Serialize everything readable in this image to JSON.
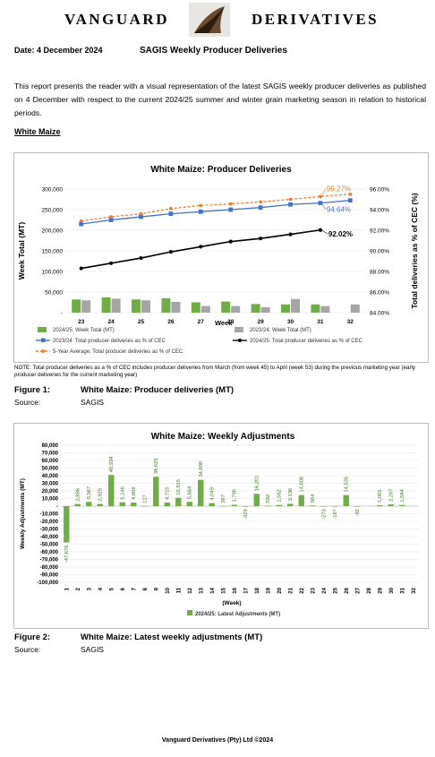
{
  "header": {
    "brand_left": "VANGUARD",
    "brand_right": "DERIVATIVES"
  },
  "report": {
    "date_label": "Date:  4 December 2024",
    "title": "SAGIS Weekly Producer Deliveries",
    "intro": "This report presents the reader with a visual representation of the latest SAGIS weekly producer deliveries as published on 4 December with respect to the current 2024/25 summer and winter grain marketing season in relation to historical periods.",
    "section": "White Maize",
    "note": "NOTE: Total producer deliveries as a % of CEC includes producer deliveries from March (from week 45) to April (week 53) during the previous marketing year (early producer deliveries for the current marketing year)"
  },
  "figure1": {
    "label": "Figure 1:",
    "caption": "White Maize: Producer deliveries (MT)",
    "source_label": "Source:",
    "source": "SAGIS"
  },
  "figure2": {
    "label": "Figure 2:",
    "caption": "White Maize: Latest weekly adjustments (MT)",
    "source_label": "Source:",
    "source": "SAGIS"
  },
  "footer": "Vanguard Derivatives (Pty) Ltd ©2024",
  "chart_data": [
    {
      "type": "bar",
      "title": "White Maize: Producer Deliveries",
      "xlabel": "Week",
      "ylabel": "Week Total (MT)",
      "y2label": "Total deliveries as % of CEC (%)",
      "categories": [
        "23",
        "24",
        "25",
        "26",
        "27",
        "28",
        "29",
        "30",
        "31",
        "32"
      ],
      "ylim": [
        0,
        300000
      ],
      "yticks": [
        0,
        50000,
        100000,
        150000,
        200000,
        250000,
        300000
      ],
      "ytick_labels": [
        "-",
        "50,000",
        "100,000",
        "150,000",
        "200,000",
        "250,000",
        "300,000"
      ],
      "y2lim": [
        84,
        96
      ],
      "y2ticks": [
        84,
        86,
        88,
        90,
        92,
        94,
        96
      ],
      "y2tick_labels": [
        "84.00%",
        "86.00%",
        "88.00%",
        "90.00%",
        "92.00%",
        "94.00%",
        "96.00%"
      ],
      "series": [
        {
          "name": "2024/25: Week Total (MT)",
          "kind": "bar",
          "axis": "left",
          "color": "#70ad47",
          "values": [
            32000,
            37000,
            32000,
            35000,
            25000,
            27000,
            21000,
            20000,
            20000,
            null
          ]
        },
        {
          "name": "2023/24: Week Total (MT)",
          "kind": "bar",
          "axis": "left",
          "color": "#a5a5a5",
          "values": [
            30000,
            34000,
            30000,
            26000,
            16000,
            16000,
            13000,
            33000,
            16000,
            20000
          ]
        },
        {
          "name": "2023/24: Total producer deliveries as % of CEC",
          "kind": "line",
          "axis": "right",
          "color": "#4472c4",
          "values": [
            92.6,
            93.0,
            93.3,
            93.6,
            93.8,
            94.0,
            94.2,
            94.5,
            94.64,
            94.9
          ]
        },
        {
          "name": "2024/25: Total producer deliveries as % of CEC",
          "kind": "line",
          "axis": "right",
          "color": "#000000",
          "values": [
            88.3,
            88.8,
            89.3,
            89.9,
            90.4,
            90.9,
            91.2,
            91.6,
            92.02,
            null
          ]
        },
        {
          "name": "5-Year Average: Total producer deliveries as % of CEC",
          "kind": "line",
          "axis": "right",
          "color": "#ed7d31",
          "dashed": true,
          "values": [
            92.9,
            93.3,
            93.6,
            94.1,
            94.4,
            94.55,
            94.75,
            95.0,
            95.27,
            95.5
          ]
        }
      ],
      "annotations": [
        {
          "text": "95.27%",
          "series": 4,
          "index": 8,
          "color": "#ed7d31"
        },
        {
          "text": "94.64%",
          "series": 2,
          "index": 8,
          "color": "#4472c4"
        },
        {
          "text": "92.02%",
          "series": 3,
          "index": 8,
          "color": "#000000"
        }
      ],
      "grid": true,
      "legend": "bottom"
    },
    {
      "type": "bar",
      "title": "White Maize: Weekly Adjustments",
      "xlabel": "(Week)",
      "ylabel": "Weekly Adjustments (MT)",
      "categories": [
        "1",
        "2",
        "3",
        "4",
        "5",
        "6",
        "7",
        "8",
        "9",
        "10",
        "11",
        "12",
        "13",
        "14",
        "15",
        "16",
        "17",
        "18",
        "19",
        "20",
        "21",
        "22",
        "23",
        "24",
        "25",
        "26",
        "27",
        "28",
        "29",
        "30",
        "31",
        "32"
      ],
      "ylim": [
        -100000,
        80000
      ],
      "ytick_labels": [
        "80,000",
        "70,000",
        "60,000",
        "50,000",
        "40,000",
        "30,000",
        "20,000",
        "10,000",
        "-",
        "-10,000",
        "-20,000",
        "-30,000",
        "-40,000",
        "-50,000",
        "-60,000",
        "-70,000",
        "-80,000",
        "-90,000",
        "-100,000"
      ],
      "series": [
        {
          "name": "2024/25: Latest Adjustments (MT)",
          "color": "#70ad47",
          "values": [
            -47676,
            2886,
            5567,
            2925,
            40934,
            5146,
            4808,
            127,
            38625,
            4715,
            10915,
            5664,
            34600,
            4049,
            387,
            1790,
            -329,
            16201,
            592,
            1582,
            3136,
            14608,
            904,
            -273,
            -167,
            14535,
            -92,
            0,
            1065,
            2287,
            1584,
            null
          ]
        }
      ],
      "data_labels": [
        "-47,676",
        "2,886",
        "5,567",
        "2,925",
        "40,934",
        "5,146",
        "4,808",
        "127",
        "38,625",
        "4,715",
        "10,915",
        "5,664",
        "34,600",
        "4,049",
        "387",
        "1,790",
        "-329",
        "16,201",
        "592",
        "1,582",
        "3,136",
        "14,608",
        "904",
        "-273",
        "-167",
        "14,535",
        "-92",
        "",
        "1,065",
        "2,287",
        "1,584",
        ""
      ],
      "grid": true,
      "legend": "bottom"
    }
  ]
}
